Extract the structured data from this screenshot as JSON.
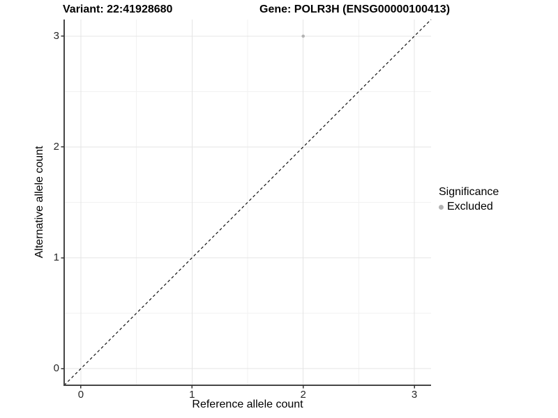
{
  "chart_data": {
    "type": "scatter",
    "title_left": "Variant: 22:41928680",
    "title_right": "Gene: POLR3H (ENSG00000100413)",
    "xlabel": "Reference allele count",
    "ylabel": "Alternative allele count",
    "xlim": [
      -0.15,
      3.15
    ],
    "ylim": [
      -0.15,
      3.15
    ],
    "x_ticks": [
      0,
      1,
      2,
      3
    ],
    "y_ticks": [
      0,
      1,
      2,
      3
    ],
    "x_minor_ticks": [
      0.5,
      1.5,
      2.5
    ],
    "y_minor_ticks": [
      0.5,
      1.5,
      2.5
    ],
    "grid": "major and minor gridlines, white panel",
    "legend_position": "right",
    "legend_title": "Significance",
    "series": [
      {
        "name": "Excluded",
        "color": "#b3b3b3",
        "points": [
          {
            "x": 2,
            "y": 3
          }
        ]
      }
    ],
    "reference_line": {
      "label": "identity y = x",
      "from": {
        "x": -0.15,
        "y": -0.15
      },
      "to": {
        "x": 3.15,
        "y": 3.15
      },
      "style": "dashed",
      "color": "#111111"
    }
  },
  "colors": {
    "background": "#ffffff",
    "major_grid": "#e4e4e4",
    "minor_grid": "#f2f2f2",
    "axis_line": "#454545",
    "tick_mark": "#333333",
    "tick_label": "#262626",
    "title_text": "#000000",
    "excluded_point": "#b3b3b3"
  }
}
